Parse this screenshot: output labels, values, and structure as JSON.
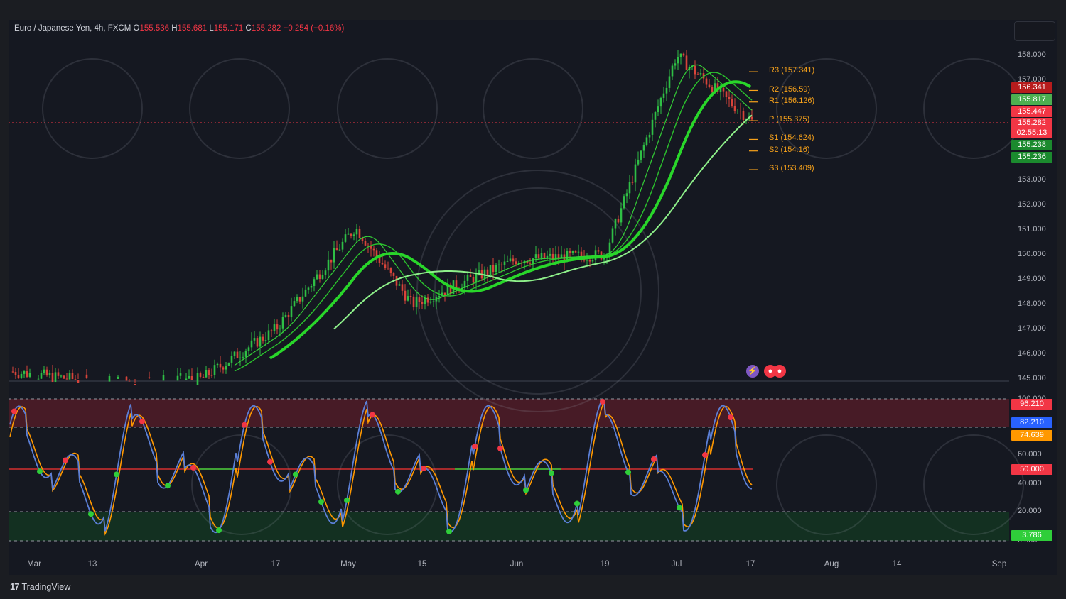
{
  "header": {
    "symbol": "Euro / Japanese Yen, 4h, FXCM",
    "o_label": "O",
    "o_value": "155.536",
    "h_label": "H",
    "h_value": "155.681",
    "l_label": "L",
    "l_value": "155.171",
    "c_label": "C",
    "c_value": "155.282",
    "change": "−0.254 (−0.16%)"
  },
  "brand": {
    "logo": "17",
    "name": "TradingView"
  },
  "price_axis": [
    "158.000",
    "157.000",
    "153.000",
    "152.000",
    "151.000",
    "150.000",
    "149.000",
    "148.000",
    "147.000",
    "146.000",
    "145.000"
  ],
  "osc_axis": [
    "100.000",
    "60.000",
    "40.000",
    "20.000",
    "0.000"
  ],
  "price_tags": [
    {
      "text": "156.341",
      "color": "#b71c1c"
    },
    {
      "text": "155.817",
      "color": "#4caf50"
    },
    {
      "text": "155.447",
      "color": "#f23645"
    },
    {
      "text": "155.282",
      "color": "#f23645"
    },
    {
      "text": "02:55:13",
      "color": "#f23645"
    },
    {
      "text": "155.238",
      "color": "#1b8a2e"
    },
    {
      "text": "155.236",
      "color": "#1b8a2e"
    }
  ],
  "osc_tags": [
    {
      "text": "96.210",
      "color": "#f23645"
    },
    {
      "text": "82.210",
      "color": "#2962ff"
    },
    {
      "text": "74.639",
      "color": "#ff9800"
    },
    {
      "text": "50.000",
      "color": "#f23645"
    },
    {
      "text": "3.786",
      "color": "#2fce3a"
    }
  ],
  "pivots": [
    {
      "label": "R3 (157.341)",
      "value": 157.341
    },
    {
      "label": "R2 (156.59)",
      "value": 156.59
    },
    {
      "label": "R1 (156.126)",
      "value": 156.126
    },
    {
      "label": "P (155.375)",
      "value": 155.375
    },
    {
      "label": "S1 (154.624)",
      "value": 154.624
    },
    {
      "label": "S2 (154.16)",
      "value": 154.16
    },
    {
      "label": "S3 (153.409)",
      "value": 153.409
    }
  ],
  "x_axis": [
    "Mar",
    "13",
    "Apr",
    "17",
    "May",
    "15",
    "Jun",
    "19",
    "Jul",
    "17",
    "Aug",
    "14",
    "Sep"
  ],
  "colors": {
    "up": "#26a69a",
    "down": "#ef5350",
    "ma_fast": "#29d62a",
    "ma_slow": "#8ef08a",
    "pivot": "#f7a21b",
    "stoch_k": "#5b7fd6",
    "stoch_d": "#ff9800"
  },
  "chart_data": [
    {
      "type": "line",
      "title": "Euro / Japanese Yen, 4h, FXCM",
      "x": [
        "Mar",
        "13",
        "Apr",
        "17",
        "May",
        "15",
        "Jun",
        "19",
        "Jul",
        "17"
      ],
      "series": [
        {
          "name": "",
          "values": [
            145.3,
            144.9,
            145.0,
            147.0,
            151.1,
            148.0,
            149.8,
            150.0,
            158.0,
            155.3
          ]
        }
      ],
      "ylim": [
        145.0,
        158.0
      ]
    },
    {
      "type": "line",
      "series": [],
      "ylim": [
        0,
        100
      ],
      "levels": [
        100,
        80,
        50,
        20,
        0
      ]
    }
  ]
}
